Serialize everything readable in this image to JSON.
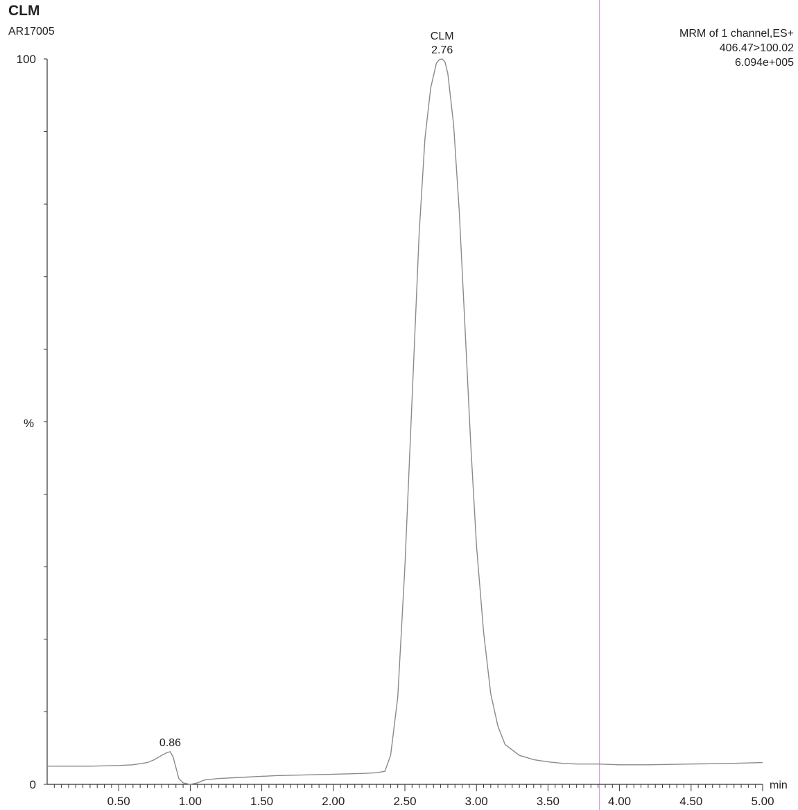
{
  "header": {
    "compound": "CLM",
    "sample_id": "AR17005",
    "channel": "MRM of 1 channel,ES+",
    "transition": "406.47>100.02",
    "intensity": "6.094e+005"
  },
  "colors": {
    "trace": "#8a8a8a",
    "axis": "#333333",
    "marker_line": "#c98bd6"
  },
  "chart_data": {
    "type": "line",
    "title": "CLM",
    "xlabel": "min",
    "ylabel": "%",
    "xlim": [
      0.0,
      5.0
    ],
    "ylim": [
      0,
      100
    ],
    "x_ticks": [
      "0.50",
      "1.00",
      "1.50",
      "2.00",
      "2.50",
      "3.00",
      "3.50",
      "4.00",
      "4.50",
      "5.00"
    ],
    "y_ticks": [
      "0",
      "100"
    ],
    "grid": false,
    "peaks": [
      {
        "rt": 0.86,
        "label": "0.86",
        "height": 4.5
      },
      {
        "rt": 2.76,
        "label": "2.76",
        "name": "CLM",
        "height": 100
      }
    ],
    "series": [
      {
        "x": [
          0.0,
          0.3,
          0.5,
          0.6,
          0.7,
          0.75,
          0.8,
          0.84,
          0.86,
          0.88,
          0.9,
          0.92,
          0.95,
          1.0,
          1.05,
          1.1,
          1.2,
          1.4,
          1.6,
          1.8,
          2.0,
          2.2,
          2.3,
          2.36,
          2.4,
          2.45,
          2.5,
          2.55,
          2.6,
          2.64,
          2.68,
          2.72,
          2.74,
          2.76,
          2.78,
          2.8,
          2.84,
          2.88,
          2.92,
          2.96,
          3.0,
          3.05,
          3.1,
          3.15,
          3.2,
          3.3,
          3.4,
          3.5,
          3.6,
          3.7,
          3.85,
          4.0,
          4.2,
          4.5,
          4.8,
          5.0
        ],
        "values": [
          2.5,
          2.5,
          2.6,
          2.7,
          3.0,
          3.4,
          4.0,
          4.4,
          4.5,
          3.8,
          2.3,
          0.8,
          0.2,
          0.0,
          0.2,
          0.6,
          0.8,
          1.0,
          1.2,
          1.3,
          1.4,
          1.5,
          1.6,
          1.8,
          4.0,
          12.0,
          30.0,
          53.0,
          76.0,
          89.0,
          96.0,
          99.4,
          99.9,
          100.0,
          99.6,
          98.0,
          91.0,
          79.0,
          63.0,
          47.0,
          33.0,
          21.0,
          12.5,
          8.0,
          5.5,
          4.0,
          3.4,
          3.1,
          2.9,
          2.8,
          2.8,
          2.7,
          2.7,
          2.8,
          2.9,
          3.0
        ]
      }
    ]
  }
}
